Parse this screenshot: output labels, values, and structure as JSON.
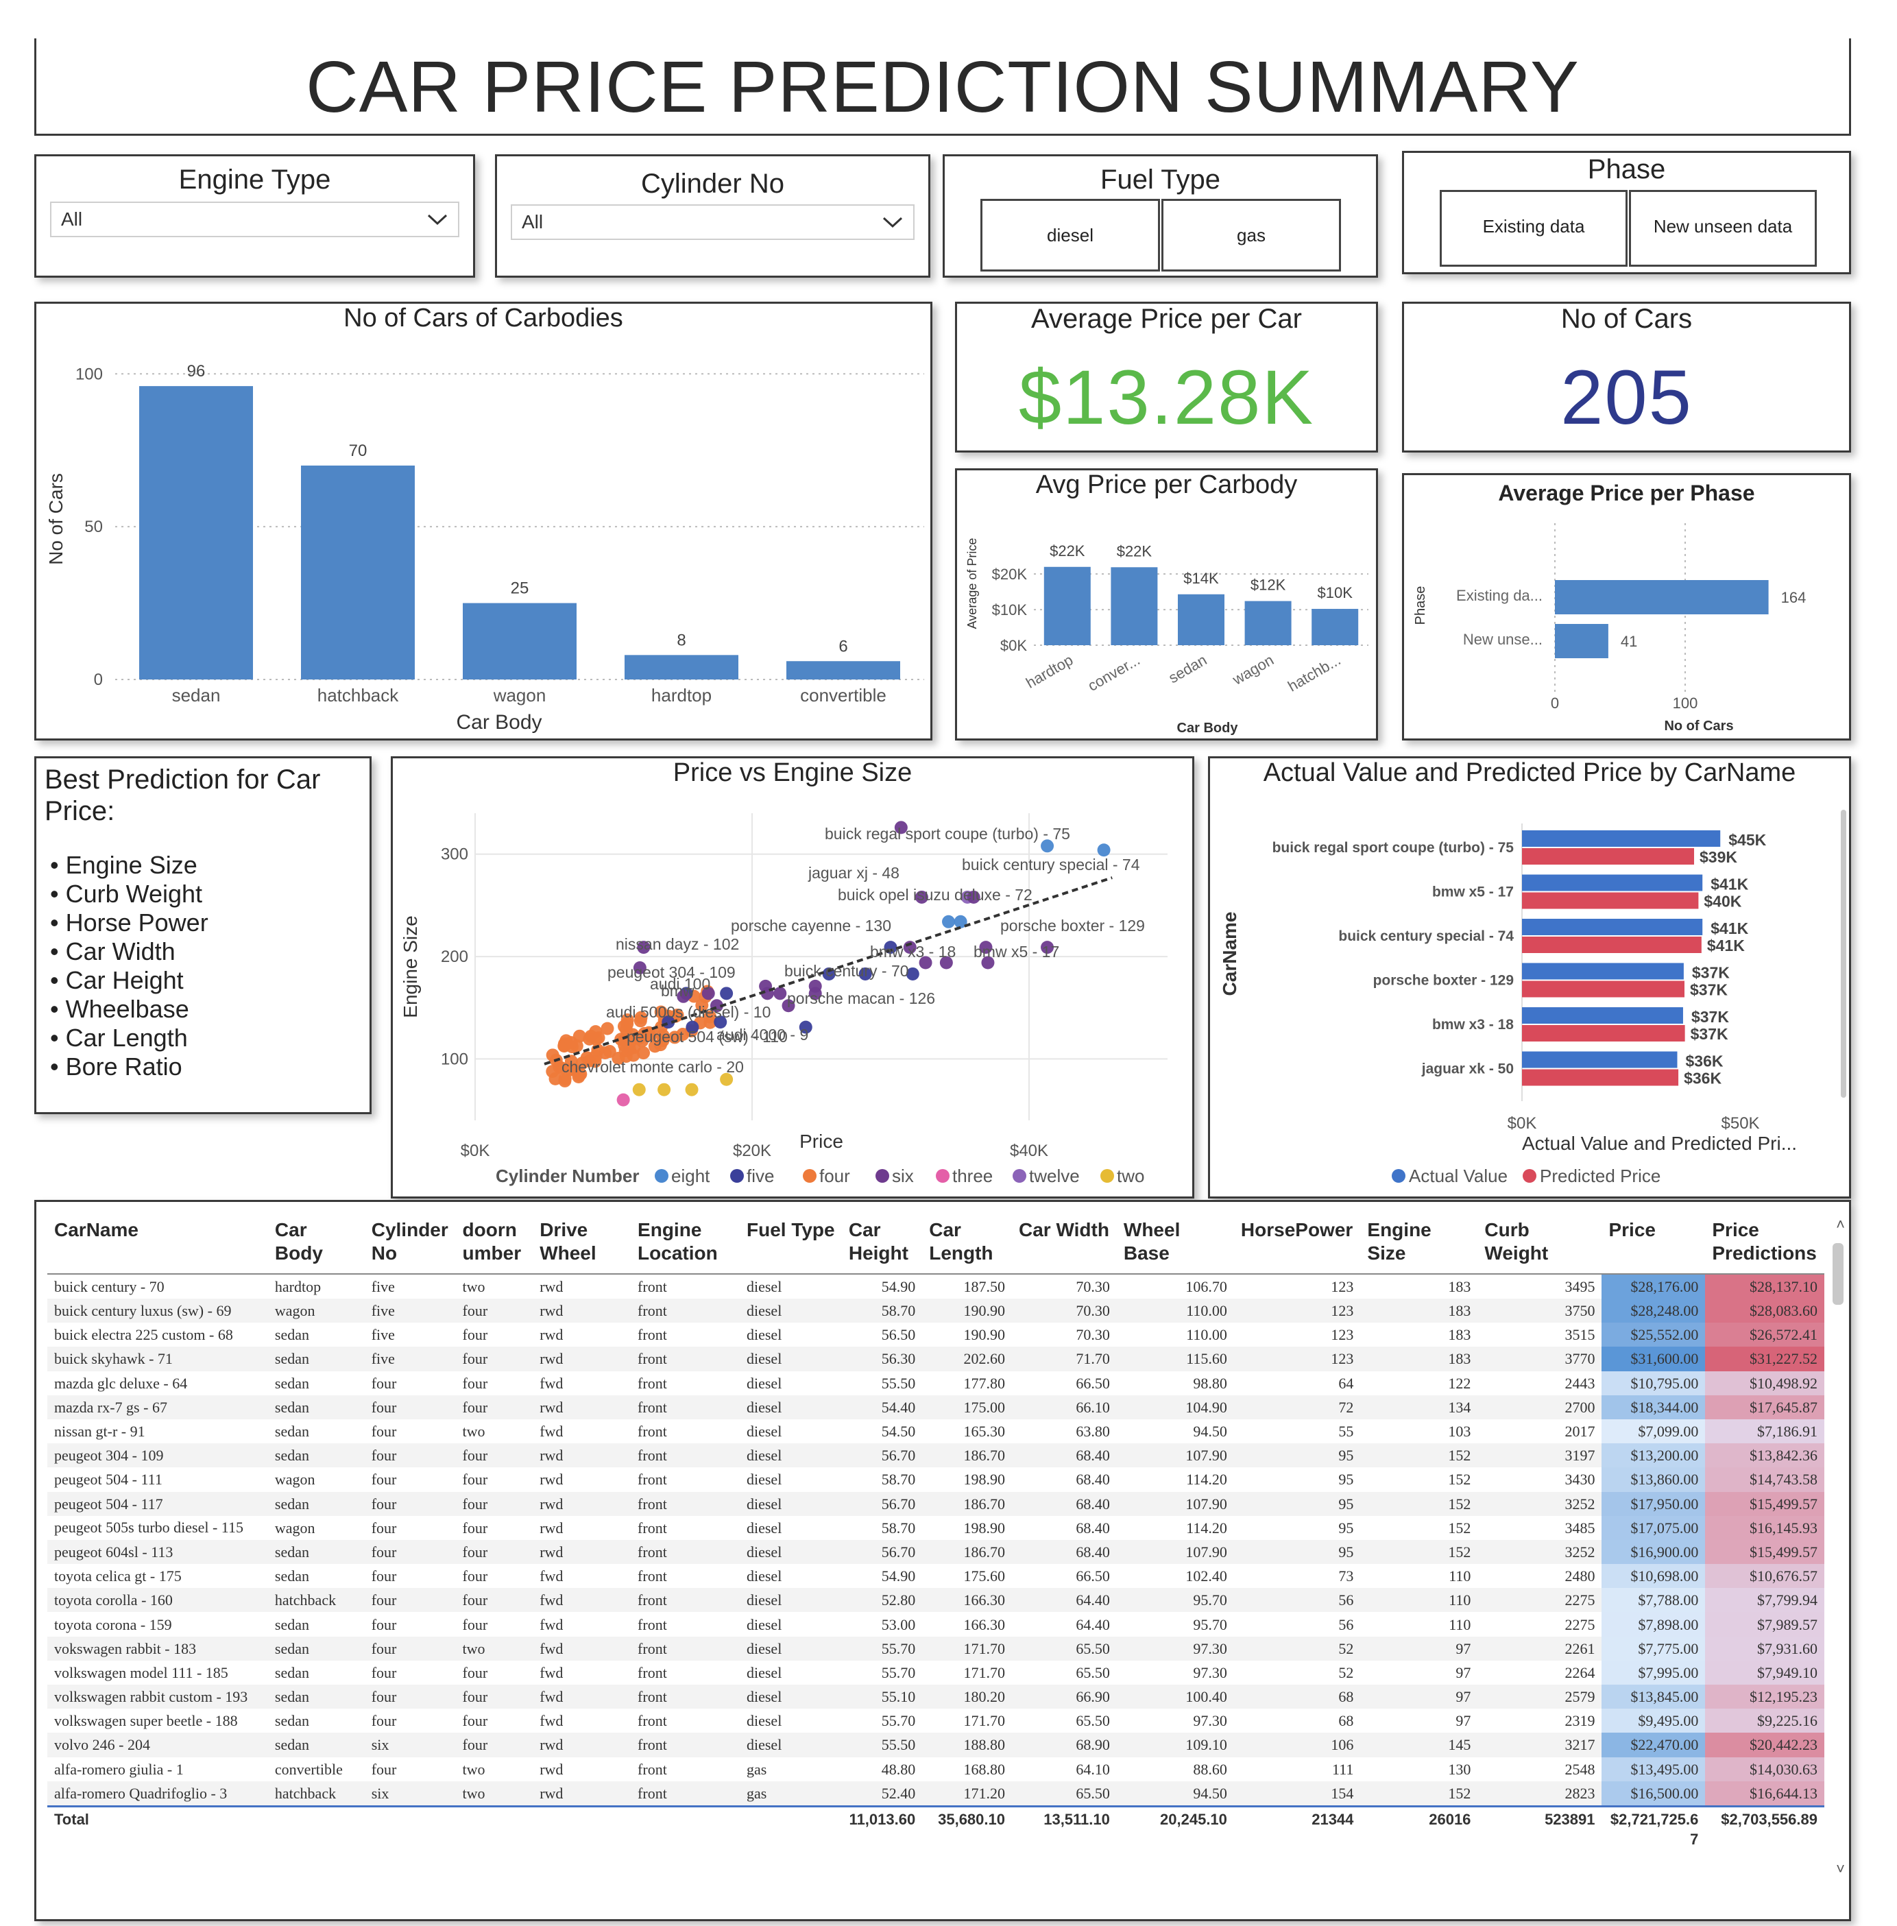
{
  "title": "CAR PRICE PREDICTION  SUMMARY",
  "slicers": {
    "engine_type": {
      "title": "Engine Type",
      "value": "All"
    },
    "cylinder_no": {
      "title": "Cylinder No",
      "value": "All"
    },
    "fuel_type": {
      "title": "Fuel Type",
      "options": [
        "diesel",
        "gas"
      ]
    },
    "phase": {
      "title": "Phase",
      "options": [
        "Existing data",
        "New unseen data"
      ]
    }
  },
  "kpis": {
    "avg_price": {
      "title": "Average Price per Car",
      "value": "$13.28K",
      "color": "#5bb94a"
    },
    "num_cars": {
      "title": "No of Cars",
      "value": "205",
      "color": "#2e3a8c"
    }
  },
  "best_prediction": {
    "title": "Best Prediction for Car Price:",
    "items": [
      "Engine Size",
      "Curb Weight",
      "Horse Power",
      "Car Width",
      "Car Height",
      "Wheelbase",
      "Car Length",
      "Bore Ratio"
    ]
  },
  "colors": {
    "bar": "#4f86c6",
    "actual": "#3f74c9",
    "predicted": "#d94a5a",
    "trend": "#333333"
  },
  "chart_data": [
    {
      "id": "carbodies",
      "type": "bar",
      "title": "No of Cars of Carbodies",
      "xlabel": "Car Body",
      "ylabel": "No of Cars",
      "categories": [
        "sedan",
        "hatchback",
        "wagon",
        "hardtop",
        "convertible"
      ],
      "values": [
        96,
        70,
        25,
        8,
        6
      ],
      "data_labels": [
        "96",
        "70",
        "25",
        "8",
        "6"
      ],
      "ylim": [
        0,
        105
      ],
      "yticks": [
        0,
        50,
        100
      ],
      "grid": true
    },
    {
      "id": "avg_carbody",
      "type": "bar",
      "title": "Avg Price per Carbody",
      "xlabel": "Car Body",
      "ylabel": "Average of Price",
      "categories": [
        "hardtop",
        "conver...",
        "sedan",
        "wagon",
        "hatchb..."
      ],
      "values": [
        22000,
        21900,
        14300,
        12400,
        10200
      ],
      "data_labels": [
        "$22K",
        "$22K",
        "$14K",
        "$12K",
        "$10K"
      ],
      "ylim": [
        0,
        26000
      ],
      "yticks": [
        "$0K",
        "$10K",
        "$20K"
      ],
      "grid": true
    },
    {
      "id": "avg_phase",
      "type": "bar",
      "orientation": "horizontal",
      "title": "Average Price per Phase",
      "xlabel": "No of Cars",
      "ylabel": "Phase",
      "categories": [
        "Existing da...",
        "New unse..."
      ],
      "values": [
        164,
        41
      ],
      "data_labels": [
        "164",
        "41"
      ],
      "xlim": [
        0,
        200
      ],
      "xticks": [
        0,
        100
      ]
    },
    {
      "id": "scatter",
      "type": "scatter",
      "title": "Price vs Engine Size",
      "xlabel": "Price",
      "ylabel": "Engine Size",
      "xlim": [
        0,
        50000
      ],
      "ylim": [
        40,
        340
      ],
      "xticks": [
        "$0K",
        "$20K",
        "$40K"
      ],
      "yticks": [
        100,
        200,
        300
      ],
      "legend_title": "Cylinder Number",
      "legend": [
        {
          "name": "eight",
          "color": "#4a88d0"
        },
        {
          "name": "five",
          "color": "#3a3f9a"
        },
        {
          "name": "four",
          "color": "#ee7a3a"
        },
        {
          "name": "six",
          "color": "#6e3b8e"
        },
        {
          "name": "three",
          "color": "#e45fa8"
        },
        {
          "name": "twelve",
          "color": "#8b63b8"
        },
        {
          "name": "two",
          "color": "#e6bb34"
        }
      ],
      "labels": [
        {
          "text": "buick regal sport coupe (turbo) - 75"
        },
        {
          "text": "buick century special - 74"
        },
        {
          "text": "jaguar xj - 48"
        },
        {
          "text": "buick opel isuzu deluxe - 72"
        },
        {
          "text": "porsche cayenne - 130"
        },
        {
          "text": "porsche boxter - 129"
        },
        {
          "text": "nissan dayz - 102"
        },
        {
          "text": "bmw x5 - 17"
        },
        {
          "text": "bmw x3 - 18"
        },
        {
          "text": "peugeot 304 - 109"
        },
        {
          "text": "buick century - 70"
        },
        {
          "text": "audi 5000s (diesel) - 10"
        },
        {
          "text": "porsche macan - 126"
        },
        {
          "text": "audi 4000 - 9"
        },
        {
          "text": "peugeot 504 (sw) - 110"
        },
        {
          "text": "chevrolet monte carlo - 20"
        },
        {
          "text": "bmw"
        },
        {
          "text": "audi 100"
        }
      ]
    },
    {
      "id": "actual_pred",
      "type": "bar",
      "orientation": "horizontal",
      "title": "Actual Value and Predicted Price by CarName",
      "xlabel": "Actual Value and Predicted Pri...",
      "ylabel": "CarName",
      "categories": [
        "buick regal sport coupe (turbo) - 75",
        "bmw x5 - 17",
        "buick century special - 74",
        "porsche boxter - 129",
        "bmw x3 - 18",
        "jaguar xk - 50"
      ],
      "series": [
        {
          "name": "Actual Value",
          "values": [
            45400,
            41315,
            41315,
            37028,
            36880,
            35550
          ],
          "labels": [
            "$45K",
            "$41K",
            "$41K",
            "$37K",
            "$37K",
            "$36K"
          ]
        },
        {
          "name": "Predicted Price",
          "values": [
            39400,
            40400,
            41100,
            37200,
            37300,
            35800
          ],
          "labels": [
            "$39K",
            "$40K",
            "$41K",
            "$37K",
            "$37K",
            "$36K"
          ]
        }
      ],
      "xlim": [
        0,
        62000
      ],
      "xticks": [
        "$0K",
        "$50K"
      ]
    }
  ],
  "table": {
    "headers": [
      "CarName",
      "Car Body",
      "Cylinder No",
      "doorn umber",
      "Drive Wheel",
      "Engine Location",
      "Fuel Type",
      "Car Height",
      "Car Length",
      "Car Width",
      "Wheel Base",
      "HorsePower",
      "Engine Size",
      "Curb Weight",
      "Price",
      "Price Predictions"
    ],
    "rows": [
      [
        "buick century - 70",
        "hardtop",
        "five",
        "two",
        "rwd",
        "front",
        "diesel",
        "54.90",
        "187.50",
        "70.30",
        "106.70",
        "123",
        "183",
        "3495",
        "$28,176.00",
        "$28,137.10"
      ],
      [
        "buick century luxus (sw) - 69",
        "wagon",
        "five",
        "four",
        "rwd",
        "front",
        "diesel",
        "58.70",
        "190.90",
        "70.30",
        "110.00",
        "123",
        "183",
        "3750",
        "$28,248.00",
        "$28,083.60"
      ],
      [
        "buick electra 225 custom - 68",
        "sedan",
        "five",
        "four",
        "rwd",
        "front",
        "diesel",
        "56.50",
        "190.90",
        "70.30",
        "110.00",
        "123",
        "183",
        "3515",
        "$25,552.00",
        "$26,572.41"
      ],
      [
        "buick skyhawk - 71",
        "sedan",
        "five",
        "four",
        "rwd",
        "front",
        "diesel",
        "56.30",
        "202.60",
        "71.70",
        "115.60",
        "123",
        "183",
        "3770",
        "$31,600.00",
        "$31,227.52"
      ],
      [
        "mazda glc deluxe - 64",
        "sedan",
        "four",
        "four",
        "fwd",
        "front",
        "diesel",
        "55.50",
        "177.80",
        "66.50",
        "98.80",
        "64",
        "122",
        "2443",
        "$10,795.00",
        "$10,498.92"
      ],
      [
        "mazda rx-7 gs - 67",
        "sedan",
        "four",
        "four",
        "rwd",
        "front",
        "diesel",
        "54.40",
        "175.00",
        "66.10",
        "104.90",
        "72",
        "134",
        "2700",
        "$18,344.00",
        "$17,645.87"
      ],
      [
        "nissan gt-r - 91",
        "sedan",
        "four",
        "two",
        "fwd",
        "front",
        "diesel",
        "54.50",
        "165.30",
        "63.80",
        "94.50",
        "55",
        "103",
        "2017",
        "$7,099.00",
        "$7,186.91"
      ],
      [
        "peugeot 304 - 109",
        "sedan",
        "four",
        "four",
        "rwd",
        "front",
        "diesel",
        "56.70",
        "186.70",
        "68.40",
        "107.90",
        "95",
        "152",
        "3197",
        "$13,200.00",
        "$13,842.36"
      ],
      [
        "peugeot 504 - 111",
        "wagon",
        "four",
        "four",
        "rwd",
        "front",
        "diesel",
        "58.70",
        "198.90",
        "68.40",
        "114.20",
        "95",
        "152",
        "3430",
        "$13,860.00",
        "$14,743.58"
      ],
      [
        "peugeot 504 - 117",
        "sedan",
        "four",
        "four",
        "rwd",
        "front",
        "diesel",
        "56.70",
        "186.70",
        "68.40",
        "107.90",
        "95",
        "152",
        "3252",
        "$17,950.00",
        "$15,499.57"
      ],
      [
        "peugeot 505s turbo diesel - 115",
        "wagon",
        "four",
        "four",
        "rwd",
        "front",
        "diesel",
        "58.70",
        "198.90",
        "68.40",
        "114.20",
        "95",
        "152",
        "3485",
        "$17,075.00",
        "$16,145.93"
      ],
      [
        "peugeot 604sl - 113",
        "sedan",
        "four",
        "four",
        "rwd",
        "front",
        "diesel",
        "56.70",
        "186.70",
        "68.40",
        "107.90",
        "95",
        "152",
        "3252",
        "$16,900.00",
        "$15,499.57"
      ],
      [
        "toyota celica gt - 175",
        "sedan",
        "four",
        "four",
        "fwd",
        "front",
        "diesel",
        "54.90",
        "175.60",
        "66.50",
        "102.40",
        "73",
        "110",
        "2480",
        "$10,698.00",
        "$10,676.57"
      ],
      [
        "toyota corolla - 160",
        "hatchback",
        "four",
        "four",
        "fwd",
        "front",
        "diesel",
        "52.80",
        "166.30",
        "64.40",
        "95.70",
        "56",
        "110",
        "2275",
        "$7,788.00",
        "$7,799.94"
      ],
      [
        "toyota corona - 159",
        "sedan",
        "four",
        "four",
        "fwd",
        "front",
        "diesel",
        "53.00",
        "166.30",
        "64.40",
        "95.70",
        "56",
        "110",
        "2275",
        "$7,898.00",
        "$7,989.57"
      ],
      [
        "vokswagen rabbit - 183",
        "sedan",
        "four",
        "two",
        "fwd",
        "front",
        "diesel",
        "55.70",
        "171.70",
        "65.50",
        "97.30",
        "52",
        "97",
        "2261",
        "$7,775.00",
        "$7,931.60"
      ],
      [
        "volkswagen model 111 - 185",
        "sedan",
        "four",
        "four",
        "fwd",
        "front",
        "diesel",
        "55.70",
        "171.70",
        "65.50",
        "97.30",
        "52",
        "97",
        "2264",
        "$7,995.00",
        "$7,949.10"
      ],
      [
        "volkswagen rabbit custom - 193",
        "sedan",
        "four",
        "four",
        "fwd",
        "front",
        "diesel",
        "55.10",
        "180.20",
        "66.90",
        "100.40",
        "68",
        "97",
        "2579",
        "$13,845.00",
        "$12,195.23"
      ],
      [
        "volkswagen super beetle - 188",
        "sedan",
        "four",
        "four",
        "fwd",
        "front",
        "diesel",
        "55.70",
        "171.70",
        "65.50",
        "97.30",
        "68",
        "97",
        "2319",
        "$9,495.00",
        "$9,225.16"
      ],
      [
        "volvo 246 - 204",
        "sedan",
        "six",
        "four",
        "rwd",
        "front",
        "diesel",
        "55.50",
        "188.80",
        "68.90",
        "109.10",
        "106",
        "145",
        "3217",
        "$22,470.00",
        "$20,442.23"
      ],
      [
        "alfa-romero giulia - 1",
        "convertible",
        "four",
        "two",
        "rwd",
        "front",
        "gas",
        "48.80",
        "168.80",
        "64.10",
        "88.60",
        "111",
        "130",
        "2548",
        "$13,495.00",
        "$14,030.63"
      ],
      [
        "alfa-romero Quadrifoglio - 3",
        "hatchback",
        "six",
        "two",
        "rwd",
        "front",
        "gas",
        "52.40",
        "171.20",
        "65.50",
        "94.50",
        "154",
        "152",
        "2823",
        "$16,500.00",
        "$16,644.13"
      ]
    ],
    "total": [
      "Total",
      "",
      "",
      "",
      "",
      "",
      "",
      "11,013.60",
      "35,680.10",
      "13,511.10",
      "20,245.10",
      "21344",
      "26016",
      "523891",
      "$2,721,725.67",
      "$2,703,556.89"
    ]
  }
}
